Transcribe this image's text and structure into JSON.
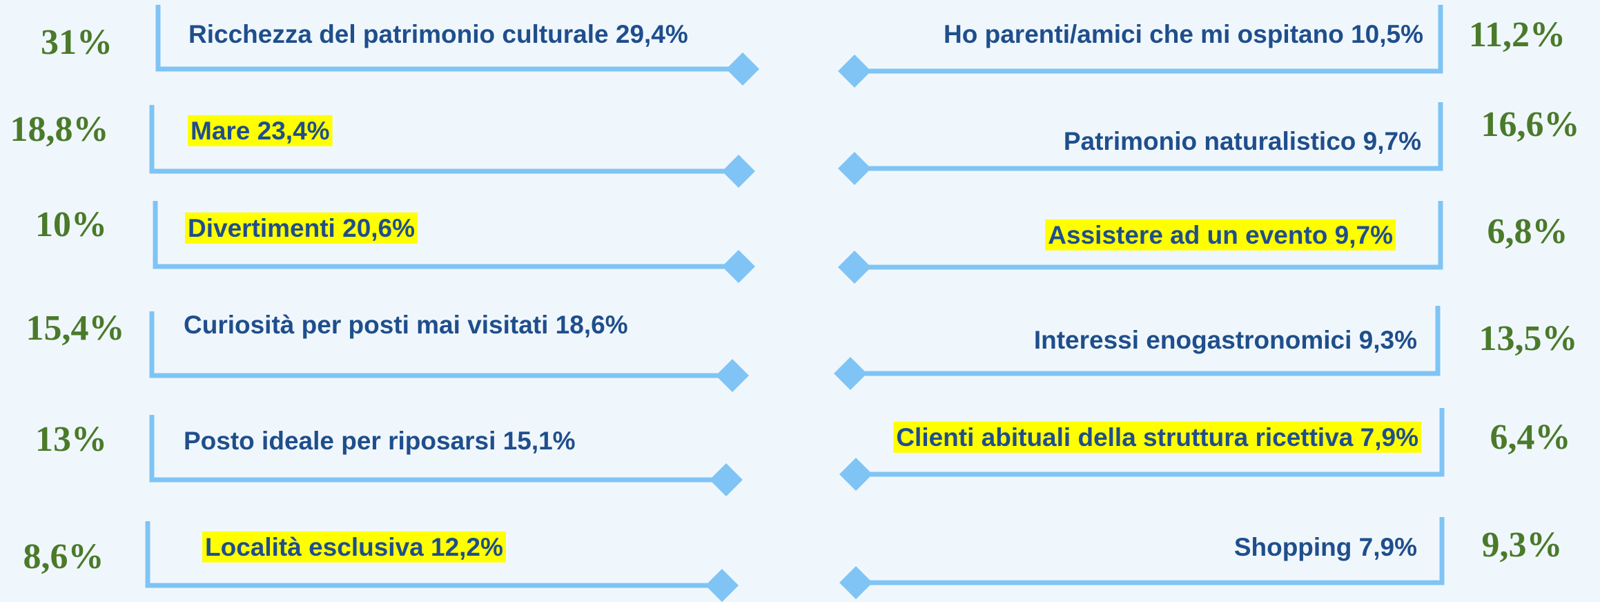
{
  "left": [
    {
      "label": "Ricchezza del patrimonio culturale 29,4%",
      "percent": "31%",
      "highlight": false
    },
    {
      "label": "Mare 23,4%",
      "percent": "18,8%",
      "highlight": true
    },
    {
      "label": "Divertimenti 20,6%",
      "percent": "10%",
      "highlight": true
    },
    {
      "label": "Curiosità per posti mai visitati 18,6%",
      "percent": "15,4%",
      "highlight": false
    },
    {
      "label": "Posto ideale per riposarsi 15,1%",
      "percent": "13%",
      "highlight": false
    },
    {
      "label": "Località esclusiva 12,2%",
      "percent": "8,6%",
      "highlight": true
    }
  ],
  "right": [
    {
      "label": "Ho parenti/amici che mi ospitano 10,5%",
      "percent": "11,2%",
      "highlight": false
    },
    {
      "label": "Patrimonio naturalistico 9,7%",
      "percent": "16,6%",
      "highlight": false
    },
    {
      "label": "Assistere ad un evento 9,7%",
      "percent": "6,8%",
      "highlight": true
    },
    {
      "label": "Interessi enogastronomici 9,3%",
      "percent": "13,5%",
      "highlight": false
    },
    {
      "label": "Clienti abituali della struttura ricettiva 7,9%",
      "percent": "6,4%",
      "highlight": true
    },
    {
      "label": "Shopping 7,9%",
      "percent": "9,3%",
      "highlight": false
    }
  ]
}
